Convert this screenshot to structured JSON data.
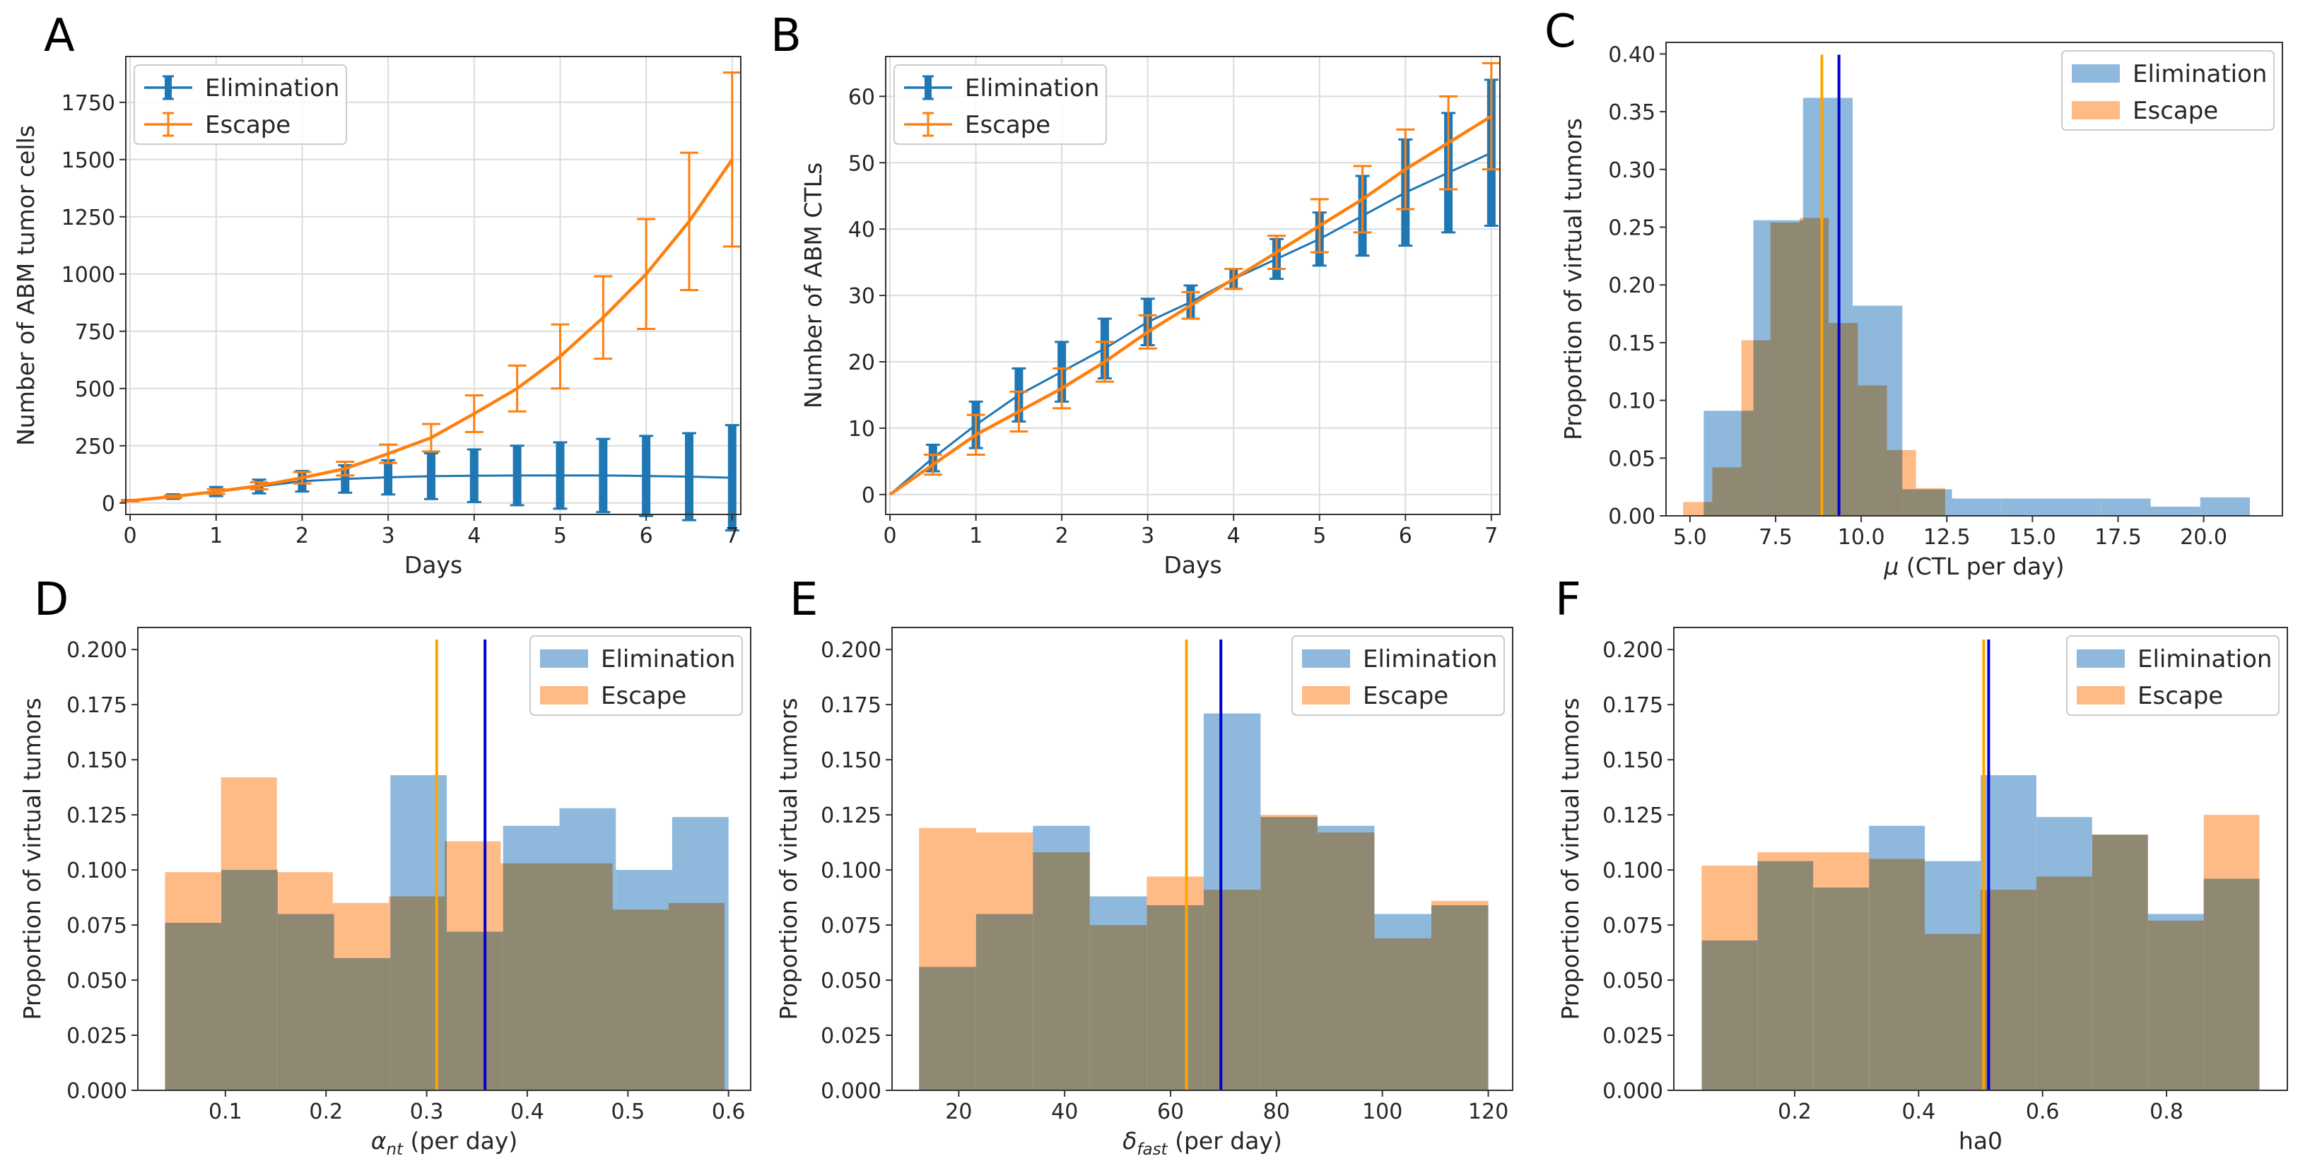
{
  "colors": {
    "elimination": "#1f77b4",
    "escape": "#ff7f0e",
    "elim_fill": "#8fb9dc",
    "esc_fill": "#ffbb85",
    "overlap": "#c49a72",
    "mean_elim": "#0000cd",
    "mean_esc": "#ffa500",
    "grid": "#dcdcdc"
  },
  "chart_data": [
    {
      "panel": "A",
      "type": "line",
      "errorbars": true,
      "xlabel": "Days",
      "ylabel": "Number of ABM tumor cells",
      "xlim": [
        -0.05,
        7.1
      ],
      "ylim": [
        -50,
        1950
      ],
      "xticks": [
        0,
        1,
        2,
        3,
        4,
        5,
        6,
        7
      ],
      "xtick_labels": [
        "0",
        "1",
        "2",
        "3",
        "4",
        "5",
        "6",
        "7"
      ],
      "yticks": [
        0,
        250,
        500,
        750,
        1000,
        1250,
        1500,
        1750
      ],
      "ytick_labels": [
        "0",
        "250",
        "500",
        "750",
        "1000",
        "1250",
        "1500",
        "1750"
      ],
      "x": [
        0,
        0.5,
        1,
        1.5,
        2,
        2.5,
        3,
        3.5,
        4,
        4.5,
        5,
        5.5,
        6,
        6.5,
        7
      ],
      "series": [
        {
          "name": "Elimination",
          "values": [
            10,
            28,
            50,
            72,
            95,
            105,
            112,
            117,
            119,
            120,
            120,
            120,
            118,
            115,
            110
          ],
          "err": [
            3,
            10,
            20,
            30,
            45,
            60,
            75,
            100,
            115,
            130,
            145,
            160,
            175,
            190,
            230
          ]
        },
        {
          "name": "Escape",
          "values": [
            10,
            28,
            50,
            75,
            110,
            150,
            215,
            285,
            390,
            500,
            640,
            810,
            1000,
            1230,
            1500
          ],
          "err": [
            3,
            5,
            10,
            15,
            25,
            30,
            40,
            60,
            80,
            100,
            140,
            180,
            240,
            300,
            380
          ]
        }
      ],
      "legend": [
        "Elimination",
        "Escape"
      ],
      "legend_loc": "upper left"
    },
    {
      "panel": "B",
      "type": "line",
      "errorbars": true,
      "xlabel": "Days",
      "ylabel": "Number of ABM CTLs",
      "xlim": [
        -0.05,
        7.1
      ],
      "ylim": [
        -3,
        66
      ],
      "xticks": [
        0,
        1,
        2,
        3,
        4,
        5,
        6,
        7
      ],
      "xtick_labels": [
        "0",
        "1",
        "2",
        "3",
        "4",
        "5",
        "6",
        "7"
      ],
      "yticks": [
        0,
        10,
        20,
        30,
        40,
        50,
        60
      ],
      "ytick_labels": [
        "0",
        "10",
        "20",
        "30",
        "40",
        "50",
        "60"
      ],
      "x": [
        0,
        0.5,
        1,
        1.5,
        2,
        2.5,
        3,
        3.5,
        4,
        4.5,
        5,
        5.5,
        6,
        6.5,
        7
      ],
      "series": [
        {
          "name": "Elimination",
          "values": [
            0,
            5.5,
            10.5,
            15,
            18.5,
            22,
            26,
            29,
            32.5,
            35.5,
            38.5,
            42,
            45.5,
            48.5,
            51.5
          ],
          "err": [
            0,
            2,
            3.5,
            4,
            4.5,
            4.5,
            3.5,
            2.5,
            1.5,
            3,
            4,
            6,
            8,
            9,
            11
          ]
        },
        {
          "name": "Escape",
          "values": [
            0,
            4.5,
            9,
            12.5,
            16,
            20,
            24.5,
            28.5,
            32.5,
            36.5,
            40.5,
            44.5,
            49,
            53,
            57
          ],
          "err": [
            0,
            1.5,
            3,
            3,
            3,
            3,
            2.5,
            2,
            1.5,
            2.5,
            4,
            5,
            6,
            7,
            8
          ]
        }
      ],
      "legend": [
        "Elimination",
        "Escape"
      ],
      "legend_loc": "upper left"
    },
    {
      "panel": "C",
      "type": "histogram",
      "xlabel_var": "μ",
      "xlabel_sub": "",
      "xlabel_rest": " (CTL per day)",
      "ylabel": "Proportion of virtual tumors",
      "xlim": [
        4.3,
        22.3
      ],
      "ylim": [
        0,
        0.41
      ],
      "xticks": [
        5,
        7.5,
        10,
        12.5,
        15,
        17.5,
        20
      ],
      "xtick_labels": [
        "5.0",
        "7.5",
        "10.0",
        "12.5",
        "15.0",
        "17.5",
        "20.0"
      ],
      "yticks": [
        0,
        0.05,
        0.1,
        0.15,
        0.2,
        0.25,
        0.3,
        0.35,
        0.4
      ],
      "ytick_labels": [
        "0.00",
        "0.05",
        "0.10",
        "0.15",
        "0.20",
        "0.25",
        "0.30",
        "0.35",
        "0.40"
      ],
      "series": [
        {
          "name": "Elimination",
          "edges": [
            5.4,
            6.85,
            8.3,
            9.75,
            11.2,
            12.65,
            14.1,
            15.55,
            17.0,
            18.45,
            19.9,
            21.35
          ],
          "values": [
            0.091,
            0.256,
            0.362,
            0.182,
            0.023,
            0.015,
            0.015,
            0.015,
            0.015,
            0.008,
            0.016
          ]
        },
        {
          "name": "Escape",
          "edges": [
            4.8,
            5.65,
            6.5,
            7.35,
            8.2,
            9.05,
            9.9,
            10.75,
            11.6,
            12.45
          ],
          "values": [
            0.012,
            0.042,
            0.152,
            0.254,
            0.258,
            0.167,
            0.113,
            0.057,
            0.024
          ]
        }
      ],
      "means": {
        "Elimination": 9.35,
        "Escape": 8.85
      },
      "legend": [
        "Elimination",
        "Escape"
      ],
      "legend_loc": "upper right"
    },
    {
      "panel": "D",
      "type": "histogram",
      "xlabel_var": "α",
      "xlabel_sub": "nt",
      "xlabel_rest": " (per day)",
      "ylabel": "Proportion of virtual tumors",
      "xlim": [
        0.013,
        0.622
      ],
      "ylim": [
        0,
        0.21
      ],
      "xticks": [
        0.1,
        0.2,
        0.3,
        0.4,
        0.5,
        0.6
      ],
      "xtick_labels": [
        "0.1",
        "0.2",
        "0.3",
        "0.4",
        "0.5",
        "0.6"
      ],
      "yticks": [
        0,
        0.025,
        0.05,
        0.075,
        0.1,
        0.125,
        0.15,
        0.175,
        0.2
      ],
      "ytick_labels": [
        "0.000",
        "0.025",
        "0.050",
        "0.075",
        "0.100",
        "0.125",
        "0.150",
        "0.175",
        "0.200"
      ],
      "series": [
        {
          "name": "Elimination",
          "edges": [
            0.04,
            0.096,
            0.152,
            0.208,
            0.264,
            0.32,
            0.376,
            0.432,
            0.488,
            0.544,
            0.6
          ],
          "values": [
            0.076,
            0.1,
            0.08,
            0.06,
            0.143,
            0.072,
            0.12,
            0.128,
            0.1,
            0.124
          ]
        },
        {
          "name": "Escape",
          "edges": [
            0.04,
            0.0956,
            0.1512,
            0.2068,
            0.2624,
            0.318,
            0.3736,
            0.4292,
            0.4848,
            0.5404,
            0.596
          ],
          "values": [
            0.099,
            0.142,
            0.099,
            0.085,
            0.088,
            0.113,
            0.103,
            0.103,
            0.082,
            0.085
          ]
        }
      ],
      "means": {
        "Elimination": 0.358,
        "Escape": 0.31
      },
      "legend": [
        "Elimination",
        "Escape"
      ],
      "legend_loc": "upper right"
    },
    {
      "panel": "E",
      "type": "histogram",
      "xlabel_var": "δ",
      "xlabel_sub": "fast",
      "xlabel_rest": " (per day)",
      "ylabel": "Proportion of virtual tumors",
      "xlim": [
        7.4,
        124.6
      ],
      "ylim": [
        0,
        0.21
      ],
      "xticks": [
        20,
        40,
        60,
        80,
        100,
        120
      ],
      "xtick_labels": [
        "20",
        "40",
        "60",
        "80",
        "100",
        "120"
      ],
      "yticks": [
        0,
        0.025,
        0.05,
        0.075,
        0.1,
        0.125,
        0.15,
        0.175,
        0.2
      ],
      "ytick_labels": [
        "0.000",
        "0.025",
        "0.050",
        "0.075",
        "0.100",
        "0.125",
        "0.150",
        "0.175",
        "0.200"
      ],
      "series": [
        {
          "name": "Elimination",
          "edges": [
            12.5,
            23.25,
            34,
            44.75,
            55.5,
            66.25,
            77,
            87.75,
            98.5,
            109.25,
            120
          ],
          "values": [
            0.056,
            0.08,
            0.12,
            0.088,
            0.084,
            0.171,
            0.124,
            0.12,
            0.08,
            0.084
          ]
        },
        {
          "name": "Escape",
          "edges": [
            12.5,
            23.25,
            34,
            44.75,
            55.5,
            66.25,
            77,
            87.75,
            98.5,
            109.25,
            120
          ],
          "values": [
            0.119,
            0.117,
            0.108,
            0.075,
            0.097,
            0.091,
            0.125,
            0.117,
            0.069,
            0.086
          ]
        }
      ],
      "means": {
        "Elimination": 69.5,
        "Escape": 63
      },
      "legend": [
        "Elimination",
        "Escape"
      ],
      "legend_loc": "upper right"
    },
    {
      "panel": "F",
      "type": "histogram",
      "xlabel_var": "ha0",
      "xlabel_sub": "",
      "xlabel_rest": "",
      "ylabel": "Proportion of virtual tumors",
      "xlim": [
        0.005,
        0.995
      ],
      "ylim": [
        0,
        0.21
      ],
      "xticks": [
        0.2,
        0.4,
        0.6,
        0.8
      ],
      "xtick_labels": [
        "0.2",
        "0.4",
        "0.6",
        "0.8"
      ],
      "yticks": [
        0,
        0.025,
        0.05,
        0.075,
        0.1,
        0.125,
        0.15,
        0.175,
        0.2
      ],
      "ytick_labels": [
        "0.000",
        "0.025",
        "0.050",
        "0.075",
        "0.100",
        "0.125",
        "0.150",
        "0.175",
        "0.200"
      ],
      "series": [
        {
          "name": "Elimination",
          "edges": [
            0.05,
            0.14,
            0.23,
            0.32,
            0.41,
            0.5,
            0.59,
            0.68,
            0.77,
            0.86,
            0.95
          ],
          "values": [
            0.068,
            0.104,
            0.092,
            0.12,
            0.104,
            0.143,
            0.124,
            0.116,
            0.08,
            0.096
          ]
        },
        {
          "name": "Escape",
          "edges": [
            0.05,
            0.14,
            0.23,
            0.32,
            0.41,
            0.5,
            0.59,
            0.68,
            0.77,
            0.86,
            0.95
          ],
          "values": [
            0.102,
            0.108,
            0.108,
            0.105,
            0.071,
            0.091,
            0.097,
            0.116,
            0.077,
            0.125
          ]
        }
      ],
      "means": {
        "Elimination": 0.513,
        "Escape": 0.505
      },
      "legend": [
        "Elimination",
        "Escape"
      ],
      "legend_loc": "upper right"
    }
  ]
}
